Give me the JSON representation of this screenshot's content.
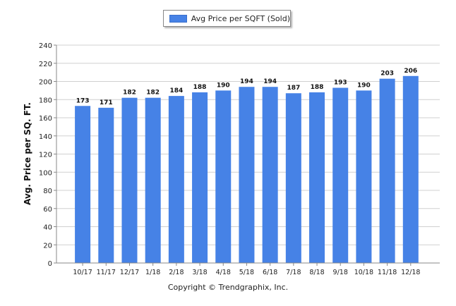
{
  "chart_data": {
    "type": "bar",
    "title": "",
    "xlabel": "",
    "ylabel": "Avg. Price per SQ. FT.",
    "legend": {
      "position": "top-center",
      "entries": [
        "Avg Price per SQFT (Sold)"
      ]
    },
    "categories": [
      "10/17",
      "11/17",
      "12/17",
      "1/18",
      "2/18",
      "3/18",
      "4/18",
      "5/18",
      "6/18",
      "7/18",
      "8/18",
      "9/18",
      "10/18",
      "11/18",
      "12/18"
    ],
    "series": [
      {
        "name": "Avg Price per SQFT (Sold)",
        "color": "#4682e6",
        "values": [
          173,
          171,
          182,
          182,
          184,
          188,
          190,
          194,
          194,
          187,
          188,
          193,
          190,
          203,
          206
        ]
      }
    ],
    "ylim": [
      0,
      240
    ],
    "yticks": [
      0,
      20,
      40,
      60,
      80,
      100,
      120,
      140,
      160,
      180,
      200,
      220,
      240
    ],
    "grid": true,
    "data_labels": true
  },
  "footer": {
    "credit": "Copyright © Trendgraphix, Inc."
  }
}
